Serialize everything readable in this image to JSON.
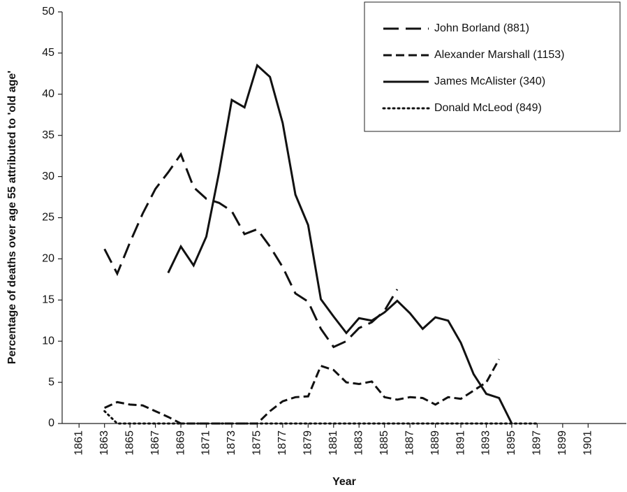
{
  "chart_data": {
    "type": "line",
    "xlabel": "Year",
    "ylabel": "Percentage of deaths over age 55 attributed to 'old age'",
    "x": [
      1863,
      1864,
      1865,
      1866,
      1867,
      1868,
      1869,
      1870,
      1871,
      1872,
      1873,
      1874,
      1875,
      1876,
      1877,
      1878,
      1879,
      1880,
      1881,
      1882,
      1883,
      1884,
      1885,
      1886,
      1887,
      1888,
      1889,
      1890,
      1891,
      1892,
      1893,
      1894,
      1895,
      1896,
      1897
    ],
    "series": [
      {
        "name": "John Borland (881)",
        "color": "#111111",
        "dash": "22,10",
        "values": [
          21.2,
          18.2,
          22,
          25.5,
          28.5,
          30.5,
          32.7,
          28.7,
          27.3,
          26.8,
          25.8,
          23,
          23.6,
          21.5,
          19,
          15.8,
          14.8,
          11.5,
          9.3,
          10,
          11.6,
          12.3,
          13.7,
          16.3,
          null,
          null,
          null,
          null,
          null,
          null,
          null,
          null,
          null,
          null,
          null
        ]
      },
      {
        "name": "Alexander Marshall (1153)",
        "color": "#111111",
        "dash": "12,6",
        "values": [
          1.9,
          2.6,
          2.3,
          2.2,
          1.5,
          0.8,
          0,
          0,
          0,
          0,
          0,
          0,
          0,
          1.5,
          2.7,
          3.2,
          3.3,
          7,
          6.5,
          5,
          4.8,
          5.1,
          3.2,
          2.9,
          3.2,
          3.1,
          2.3,
          3.2,
          3,
          4,
          5,
          7.8,
          null,
          null,
          null
        ]
      },
      {
        "name": "James McAlister (340)",
        "color": "#111111",
        "dash": "none",
        "values": [
          null,
          null,
          null,
          null,
          null,
          18.3,
          21.5,
          19.2,
          22.7,
          30.5,
          39.3,
          38.4,
          43.5,
          42.1,
          36.5,
          27.8,
          24.1,
          15.1,
          13,
          11,
          12.8,
          12.5,
          13.5,
          14.9,
          13.4,
          11.5,
          12.9,
          12.5,
          9.8,
          6,
          3.6,
          3.1,
          0,
          null,
          null
        ]
      },
      {
        "name": "Donald McLeod (849)",
        "color": "#111111",
        "dash": "2,5",
        "values": [
          1.5,
          0,
          0,
          0,
          0,
          0,
          0,
          0,
          0,
          0,
          0,
          0,
          0,
          0,
          0,
          0,
          0,
          0,
          0,
          0,
          0,
          0,
          0,
          0,
          0,
          0,
          0,
          0,
          0,
          0,
          0,
          0,
          0,
          0,
          0
        ]
      }
    ],
    "xlim": [
      1860,
      1904
    ],
    "xticks": [
      1861,
      1863,
      1865,
      1867,
      1869,
      1871,
      1873,
      1875,
      1877,
      1879,
      1881,
      1883,
      1885,
      1887,
      1889,
      1891,
      1893,
      1895,
      1897,
      1899,
      1901
    ],
    "ylim": [
      0,
      50
    ],
    "yticks": [
      0,
      5,
      10,
      15,
      20,
      25,
      30,
      35,
      40,
      45,
      50
    ],
    "legend": "top-right"
  }
}
